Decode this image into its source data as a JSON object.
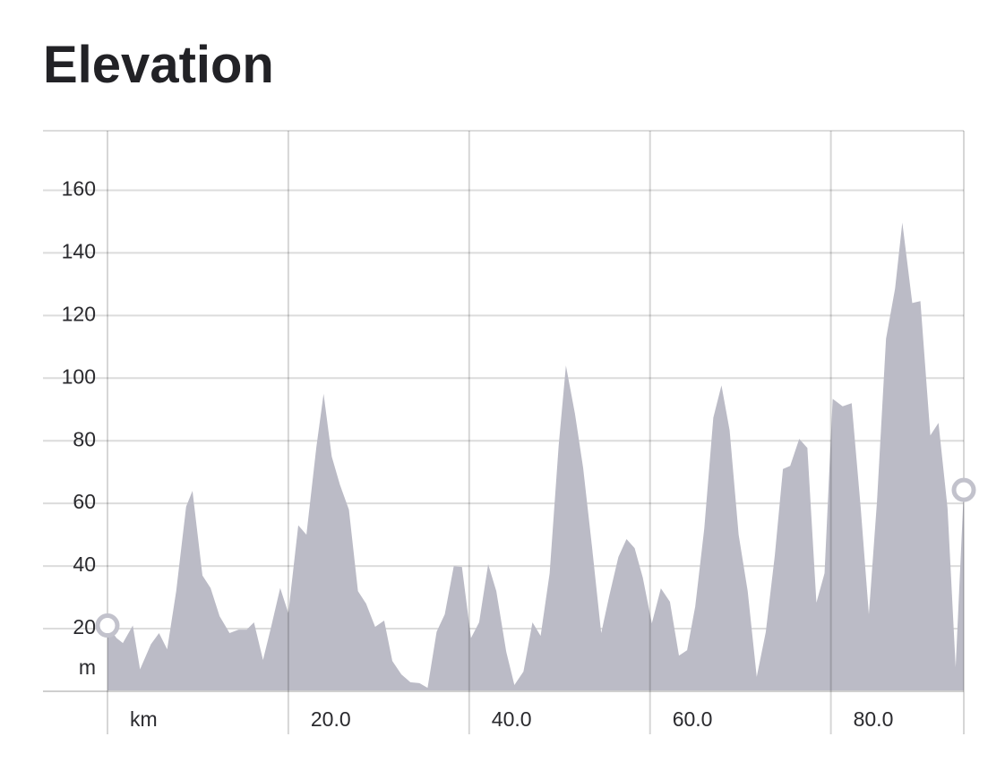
{
  "chart_data": {
    "type": "area",
    "title": "Elevation",
    "y_label": "m",
    "color": "#bbbbc6",
    "x": [
      0,
      1.0,
      1.7,
      2.8,
      3.6,
      4.8,
      5.7,
      6.6,
      7.6,
      8.7,
      9.4,
      10.5,
      11.4,
      12.4,
      13.5,
      14.5,
      15.4,
      16.2,
      17.2,
      18.1,
      19.1,
      20.0,
      21.1,
      22.0,
      23.1,
      23.9,
      24.8,
      25.7,
      26.7,
      27.7,
      28.6,
      29.6,
      30.6,
      31.5,
      32.5,
      33.5,
      34.5,
      35.4,
      36.4,
      37.3,
      38.3,
      39.2,
      40.2,
      41.1,
      42.1,
      43.0,
      44.1,
      45.0,
      46.0,
      47.0,
      47.9,
      48.9,
      49.9,
      50.7,
      51.7,
      52.6,
      53.6,
      54.6,
      55.5,
      56.5,
      57.4,
      58.3,
      59.2,
      60.2,
      61.2,
      62.2,
      63.2,
      64.1,
      65.0,
      66.0,
      67.0,
      67.9,
      68.8,
      69.8,
      70.8,
      71.8,
      72.8,
      73.8,
      74.7,
      75.5,
      76.5,
      77.4,
      78.4,
      79.3,
      80.2,
      81.3,
      82.3,
      83.3,
      84.2,
      85.1,
      86.1,
      87.1,
      87.9,
      89.0,
      89.9,
      91.0,
      91.9,
      92.9,
      93.8,
      94.7
    ],
    "values": [
      21,
      17,
      15.4,
      21,
      7,
      15,
      18.6,
      13.4,
      32,
      59,
      64,
      37,
      33,
      24,
      18.6,
      19.7,
      19.7,
      22,
      10,
      20.6,
      33,
      25,
      53,
      50,
      78,
      95,
      75,
      66,
      58,
      32,
      28,
      20.6,
      22.6,
      9.7,
      5.4,
      2.9,
      2.6,
      1.1,
      19,
      24.6,
      40,
      39.7,
      17,
      22,
      40.6,
      32,
      12.6,
      2,
      6.3,
      22,
      17.7,
      37.7,
      78.6,
      104,
      88.6,
      71.4,
      45.7,
      18.6,
      30.6,
      42.9,
      48.6,
      45.7,
      36.3,
      21.7,
      32.9,
      28.6,
      11.4,
      13.1,
      27.1,
      52,
      87.4,
      97.7,
      83.4,
      50,
      32,
      4.6,
      18.9,
      43.4,
      71,
      72,
      80.6,
      77.7,
      28.3,
      37.7,
      93.4,
      91,
      92,
      58.6,
      24.6,
      60.6,
      112.6,
      128.6,
      149.7,
      124,
      124.6,
      81.7,
      85.7,
      58.6,
      7.7,
      64.3
    ],
    "xlim": [
      0,
      94.7
    ],
    "ylim": [
      0,
      179
    ],
    "xticks": [
      {
        "value": 0,
        "label": "km"
      },
      {
        "value": 20,
        "label": "20.0"
      },
      {
        "value": 40,
        "label": "40.0"
      },
      {
        "value": 60,
        "label": "60.0"
      },
      {
        "value": 80,
        "label": "80.0"
      }
    ],
    "yticks": [
      20,
      40,
      60,
      80,
      100,
      120,
      140,
      160
    ],
    "grid": true
  }
}
